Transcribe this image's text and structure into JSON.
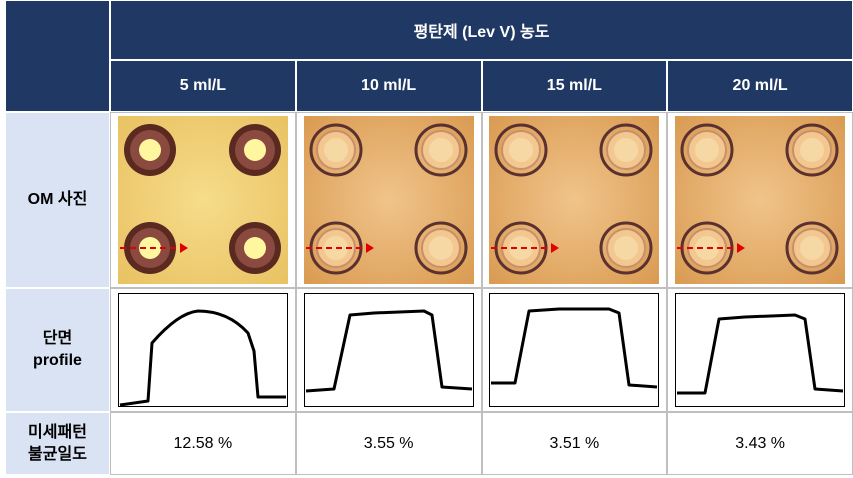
{
  "header": {
    "title": "평탄제 (Lev V) 농도",
    "columns": [
      "5 ml/L",
      "10 ml/L",
      "15 ml/L",
      "20 ml/L"
    ]
  },
  "rows": {
    "om_label": "OM 사진",
    "profile_label": [
      "단면",
      "profile"
    ],
    "uniformity_label": [
      "미세패턴",
      "불균일도"
    ],
    "uniformity": [
      "12.58 %",
      "3.55 %",
      "3.51 %",
      "3.43 %"
    ]
  }
}
